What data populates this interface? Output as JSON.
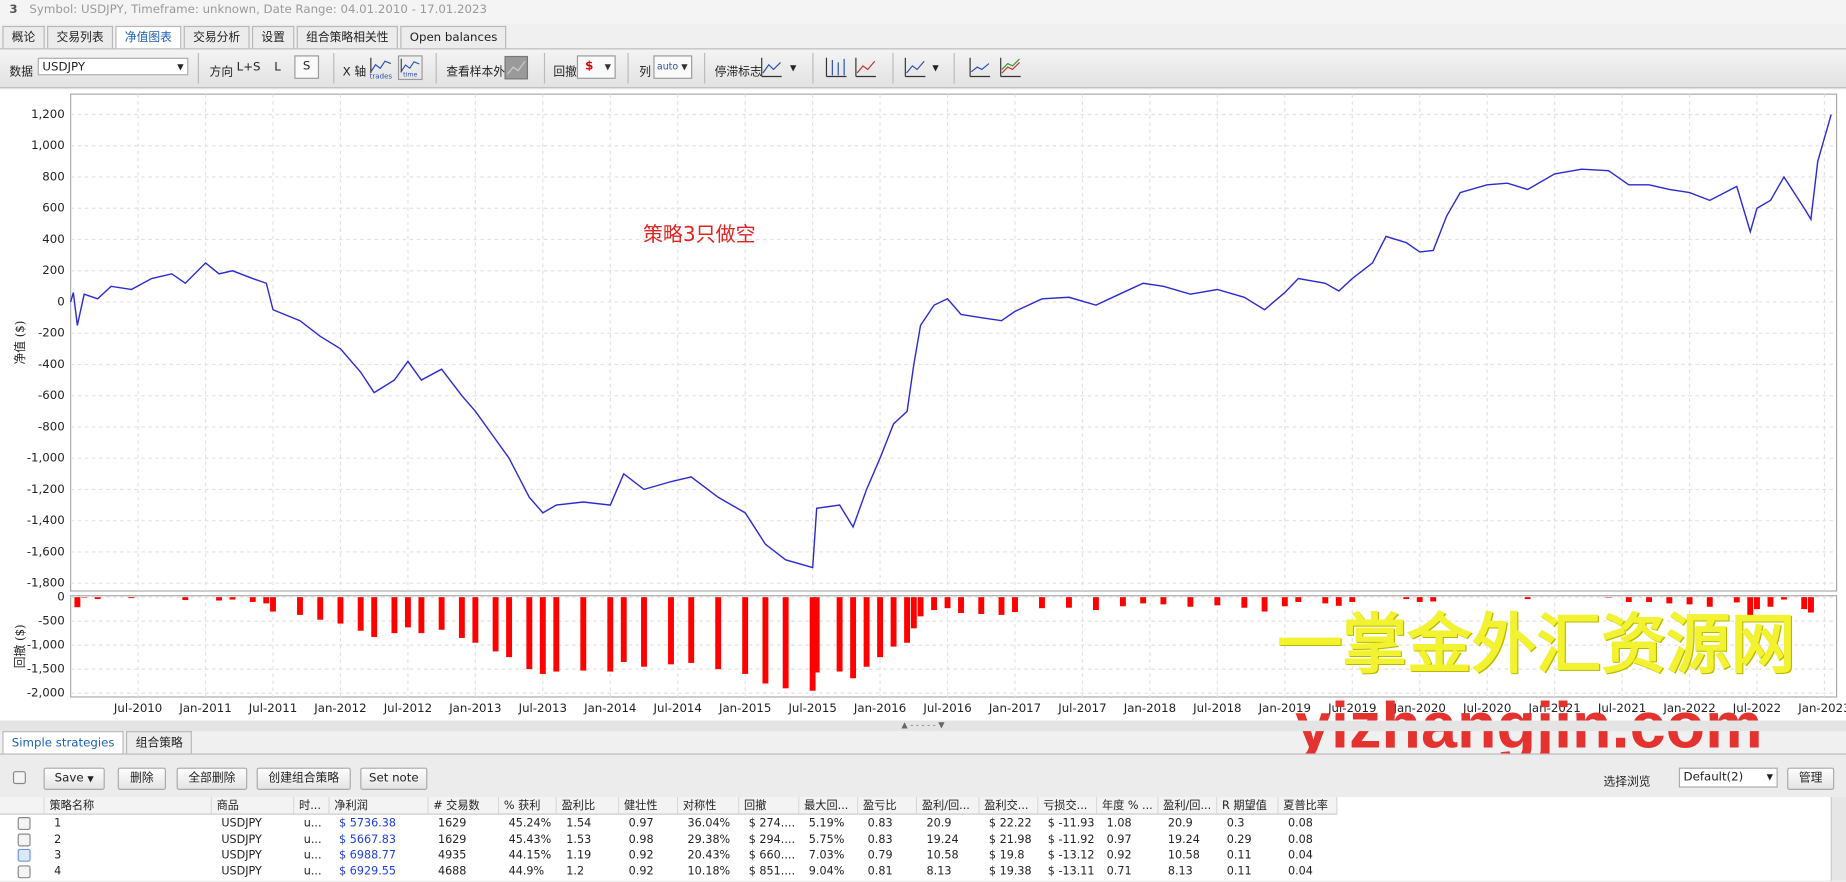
{
  "header": {
    "number": "3",
    "title": "Symbol: USDJPY, Timeframe: unknown, Date Range: 04.01.2010 - 17.01.2023"
  },
  "tabs": [
    "概论",
    "交易列表",
    "净值图表",
    "交易分析",
    "设置",
    "组合策略相关性",
    "Open balances"
  ],
  "active_tab": 2,
  "toolbar": {
    "data_label": "数据",
    "symbol": "USDJPY",
    "direction_label": "方向",
    "directions": [
      "L+S",
      "L",
      "S"
    ],
    "xaxis_label": "X 轴",
    "xaxis_options": [
      "trades",
      "time"
    ],
    "oos_label": "查看样本外",
    "drawdown_label": "回撤",
    "drawdown_unit": "$",
    "columns_label": "列",
    "columns_value": "auto",
    "stagnation_label": "停滞标志"
  },
  "chart_data": [
    {
      "type": "line",
      "ylabel": "净值 ($)",
      "annotation": "策略3只做空",
      "color": "#2b2bd0",
      "grid": true,
      "xlim": [
        2010.0,
        2023.09
      ],
      "ylim": [
        -1850,
        1330
      ],
      "xticks": [
        {
          "value": 2010.5,
          "label": "Jul-2010"
        },
        {
          "value": 2011.0,
          "label": "Jan-2011"
        },
        {
          "value": 2011.5,
          "label": "Jul-2011"
        },
        {
          "value": 2012.0,
          "label": "Jan-2012"
        },
        {
          "value": 2012.5,
          "label": "Jul-2012"
        },
        {
          "value": 2013.0,
          "label": "Jan-2013"
        },
        {
          "value": 2013.5,
          "label": "Jul-2013"
        },
        {
          "value": 2014.0,
          "label": "Jan-2014"
        },
        {
          "value": 2014.5,
          "label": "Jul-2014"
        },
        {
          "value": 2015.0,
          "label": "Jan-2015"
        },
        {
          "value": 2015.5,
          "label": "Jul-2015"
        },
        {
          "value": 2016.0,
          "label": "Jan-2016"
        },
        {
          "value": 2016.5,
          "label": "Jul-2016"
        },
        {
          "value": 2017.0,
          "label": "Jan-2017"
        },
        {
          "value": 2017.5,
          "label": "Jul-2017"
        },
        {
          "value": 2018.0,
          "label": "Jan-2018"
        },
        {
          "value": 2018.5,
          "label": "Jul-2018"
        },
        {
          "value": 2019.0,
          "label": "Jan-2019"
        },
        {
          "value": 2019.5,
          "label": "Jul-2019"
        },
        {
          "value": 2020.0,
          "label": "Jan-2020"
        },
        {
          "value": 2020.5,
          "label": "Jul-2020"
        },
        {
          "value": 2021.0,
          "label": "Jan-2021"
        },
        {
          "value": 2021.5,
          "label": "Jul-2021"
        },
        {
          "value": 2022.0,
          "label": "Jan-2022"
        },
        {
          "value": 2022.5,
          "label": "Jul-2022"
        },
        {
          "value": 2023.0,
          "label": "Jan-2023"
        }
      ],
      "yticks": [
        {
          "value": 1200,
          "label": "1,200"
        },
        {
          "value": 1000,
          "label": "1,000"
        },
        800,
        600,
        400,
        200,
        0,
        -200,
        -400,
        -600,
        -800,
        {
          "value": -1000,
          "label": "-1,000"
        },
        {
          "value": -1200,
          "label": "-1,200"
        },
        {
          "value": -1400,
          "label": "-1,400"
        },
        {
          "value": -1600,
          "label": "-1,600"
        },
        {
          "value": -1800,
          "label": "-1,800"
        }
      ],
      "x": [
        2010.0,
        2010.02,
        2010.05,
        2010.1,
        2010.2,
        2010.3,
        2010.45,
        2010.6,
        2010.75,
        2010.85,
        2011.0,
        2011.1,
        2011.2,
        2011.35,
        2011.45,
        2011.5,
        2011.7,
        2011.85,
        2012.0,
        2012.15,
        2012.25,
        2012.4,
        2012.5,
        2012.6,
        2012.75,
        2012.9,
        2013.0,
        2013.15,
        2013.25,
        2013.4,
        2013.5,
        2013.6,
        2013.8,
        2014.0,
        2014.1,
        2014.25,
        2014.45,
        2014.6,
        2014.8,
        2015.0,
        2015.15,
        2015.3,
        2015.5,
        2015.53,
        2015.7,
        2015.8,
        2015.9,
        2016.0,
        2016.1,
        2016.2,
        2016.25,
        2016.3,
        2016.4,
        2016.5,
        2016.6,
        2016.75,
        2016.9,
        2017.0,
        2017.2,
        2017.4,
        2017.6,
        2017.8,
        2017.95,
        2018.1,
        2018.3,
        2018.5,
        2018.7,
        2018.85,
        2019.0,
        2019.1,
        2019.3,
        2019.4,
        2019.5,
        2019.65,
        2019.75,
        2019.9,
        2020.0,
        2020.1,
        2020.2,
        2020.3,
        2020.5,
        2020.65,
        2020.8,
        2021.0,
        2021.2,
        2021.4,
        2021.55,
        2021.7,
        2021.85,
        2022.0,
        2022.15,
        2022.35,
        2022.45,
        2022.5,
        2022.6,
        2022.7,
        2022.85,
        2022.9,
        2022.95,
        2023.0,
        2023.05
      ],
      "values": [
        0,
        60,
        -150,
        50,
        20,
        100,
        80,
        150,
        180,
        120,
        250,
        180,
        200,
        150,
        120,
        -50,
        -120,
        -220,
        -300,
        -450,
        -580,
        -500,
        -380,
        -500,
        -430,
        -600,
        -700,
        -880,
        -1000,
        -1250,
        -1350,
        -1300,
        -1280,
        -1300,
        -1100,
        -1200,
        -1150,
        -1120,
        -1250,
        -1350,
        -1550,
        -1650,
        -1700,
        -1320,
        -1300,
        -1440,
        -1200,
        -1000,
        -780,
        -700,
        -400,
        -150,
        -20,
        20,
        -80,
        -100,
        -120,
        -60,
        20,
        30,
        -20,
        60,
        120,
        100,
        50,
        80,
        30,
        -50,
        60,
        150,
        120,
        70,
        150,
        250,
        420,
        380,
        320,
        330,
        550,
        700,
        750,
        760,
        720,
        820,
        850,
        840,
        750,
        750,
        720,
        700,
        650,
        740,
        450,
        600,
        650,
        800,
        600,
        530,
        900,
        1050,
        1200
      ]
    },
    {
      "type": "bar",
      "ylabel": "回撤 ($)",
      "color": "#ff0000",
      "grid": true,
      "xlim": [
        2010.0,
        2023.09
      ],
      "ylim": [
        -2080,
        30
      ],
      "xticks": [
        {
          "value": 2010.5,
          "label": "Jul-2010"
        },
        {
          "value": 2011.0,
          "label": "Jan-2011"
        },
        {
          "value": 2011.5,
          "label": "Jul-2011"
        },
        {
          "value": 2012.0,
          "label": "Jan-2012"
        },
        {
          "value": 2012.5,
          "label": "Jul-2012"
        },
        {
          "value": 2013.0,
          "label": "Jan-2013"
        },
        {
          "value": 2013.5,
          "label": "Jul-2013"
        },
        {
          "value": 2014.0,
          "label": "Jan-2014"
        },
        {
          "value": 2014.5,
          "label": "Jul-2014"
        },
        {
          "value": 2015.0,
          "label": "Jan-2015"
        },
        {
          "value": 2015.5,
          "label": "Jul-2015"
        },
        {
          "value": 2016.0,
          "label": "Jan-2016"
        },
        {
          "value": 2016.5,
          "label": "Jul-2016"
        },
        {
          "value": 2017.0,
          "label": "Jan-2017"
        },
        {
          "value": 2017.5,
          "label": "Jul-2017"
        },
        {
          "value": 2018.0,
          "label": "Jan-2018"
        },
        {
          "value": 2018.5,
          "label": "Jul-2018"
        },
        {
          "value": 2019.0,
          "label": "Jan-2019"
        },
        {
          "value": 2019.5,
          "label": "Jul-2019"
        },
        {
          "value": 2020.0,
          "label": "Jan-2020"
        },
        {
          "value": 2020.5,
          "label": "Jul-2020"
        },
        {
          "value": 2021.0,
          "label": "Jan-2021"
        },
        {
          "value": 2021.5,
          "label": "Jul-2021"
        },
        {
          "value": 2022.0,
          "label": "Jan-2022"
        },
        {
          "value": 2022.5,
          "label": "Jul-2022"
        },
        {
          "value": 2023.0,
          "label": "Jan-2023"
        }
      ],
      "yticks": [
        0,
        -500,
        {
          "value": -1000,
          "label": "-1,000"
        },
        {
          "value": -1500,
          "label": "-1,500"
        },
        {
          "value": -2000,
          "label": "-2,000"
        }
      ],
      "x": [
        2010.0,
        2010.02,
        2010.05,
        2010.1,
        2010.2,
        2010.3,
        2010.45,
        2010.6,
        2010.75,
        2010.85,
        2011.0,
        2011.1,
        2011.2,
        2011.35,
        2011.45,
        2011.5,
        2011.7,
        2011.85,
        2012.0,
        2012.15,
        2012.25,
        2012.4,
        2012.5,
        2012.6,
        2012.75,
        2012.9,
        2013.0,
        2013.15,
        2013.25,
        2013.4,
        2013.5,
        2013.6,
        2013.8,
        2014.0,
        2014.1,
        2014.25,
        2014.45,
        2014.6,
        2014.8,
        2015.0,
        2015.15,
        2015.3,
        2015.5,
        2015.53,
        2015.7,
        2015.8,
        2015.9,
        2016.0,
        2016.1,
        2016.2,
        2016.25,
        2016.3,
        2016.4,
        2016.5,
        2016.6,
        2016.75,
        2016.9,
        2017.0,
        2017.2,
        2017.4,
        2017.6,
        2017.8,
        2017.95,
        2018.1,
        2018.3,
        2018.5,
        2018.7,
        2018.85,
        2019.0,
        2019.1,
        2019.3,
        2019.4,
        2019.5,
        2019.65,
        2019.75,
        2019.9,
        2020.0,
        2020.1,
        2020.2,
        2020.3,
        2020.5,
        2020.65,
        2020.8,
        2021.0,
        2021.2,
        2021.4,
        2021.55,
        2021.7,
        2021.85,
        2022.0,
        2022.15,
        2022.35,
        2022.45,
        2022.5,
        2022.6,
        2022.7,
        2022.85,
        2022.9,
        2022.95,
        2023.0,
        2023.05
      ],
      "values": [
        0,
        0,
        -210,
        -10,
        -40,
        0,
        -20,
        0,
        0,
        -60,
        0,
        -70,
        -50,
        -100,
        -130,
        -300,
        -370,
        -470,
        -550,
        -700,
        -830,
        -750,
        -630,
        -750,
        -680,
        -850,
        -950,
        -1130,
        -1250,
        -1500,
        -1600,
        -1550,
        -1530,
        -1550,
        -1350,
        -1450,
        -1400,
        -1370,
        -1500,
        -1600,
        -1800,
        -1900,
        -1950,
        -1570,
        -1550,
        -1690,
        -1450,
        -1250,
        -1030,
        -950,
        -650,
        -400,
        -270,
        -230,
        -330,
        -350,
        -370,
        -310,
        -230,
        -220,
        -270,
        -190,
        -130,
        -150,
        -200,
        -170,
        -220,
        -300,
        -190,
        -100,
        -130,
        -180,
        -100,
        0,
        0,
        -40,
        -100,
        -90,
        0,
        0,
        0,
        0,
        -40,
        0,
        0,
        -10,
        -100,
        -100,
        -130,
        -150,
        -200,
        -110,
        -400,
        -250,
        -200,
        -50,
        -250,
        -320,
        0,
        0,
        0
      ]
    }
  ],
  "watermarks": [
    "一掌金外汇资源网",
    "yizhangjin.com"
  ],
  "splitter": "▲ - - - - - ▼",
  "bottom_tabs": [
    "Simple strategies",
    "组合策略"
  ],
  "buttons": [
    "Save",
    "删除",
    "全部删除",
    "创建组合策略",
    "Set note"
  ],
  "view_label": "选择浏览",
  "view_value": "Default(2)",
  "manage": "管理",
  "table": {
    "headers": [
      "策略名称",
      "商品",
      "时...",
      "净利润",
      "# 交易数",
      "% 获利",
      "盈利比",
      "健壮性",
      "对称性",
      "回撤",
      "最大回...",
      "盈亏比",
      "盈利/回...",
      "盈利交...",
      "亏损交...",
      "年度 % ...",
      "盈利/回...",
      "R 期望值",
      "夏普比率"
    ],
    "rows": [
      [
        "1",
        "USDJPY",
        "u...",
        "$ 5736.38",
        "1629",
        "45.24%",
        "1.54",
        "0.97",
        "36.04%",
        "$ 274....",
        "5.19%",
        "0.83",
        "20.9",
        "$ 22.22",
        "$ -11.93",
        "1.08",
        "20.9",
        "0.3",
        "0.08"
      ],
      [
        "2",
        "USDJPY",
        "u...",
        "$ 5667.83",
        "1629",
        "45.43%",
        "1.53",
        "0.98",
        "29.38%",
        "$ 294....",
        "5.75%",
        "0.83",
        "19.24",
        "$ 21.98",
        "$ -11.92",
        "0.97",
        "19.24",
        "0.29",
        "0.08"
      ],
      [
        "3",
        "USDJPY",
        "u...",
        "$ 6988.77",
        "4935",
        "44.15%",
        "1.19",
        "0.92",
        "20.43%",
        "$ 660....",
        "7.03%",
        "0.79",
        "10.58",
        "$ 19.8",
        "$ -13.12",
        "0.92",
        "10.58",
        "0.11",
        "0.04"
      ],
      [
        "4",
        "USDJPY",
        "u...",
        "$ 6929.55",
        "4688",
        "44.9%",
        "1.2",
        "0.92",
        "10.18%",
        "$ 851....",
        "9.04%",
        "0.81",
        "8.13",
        "$ 19.38",
        "$ -13.11",
        "0.71",
        "8.13",
        "0.11",
        "0.04"
      ]
    ]
  }
}
